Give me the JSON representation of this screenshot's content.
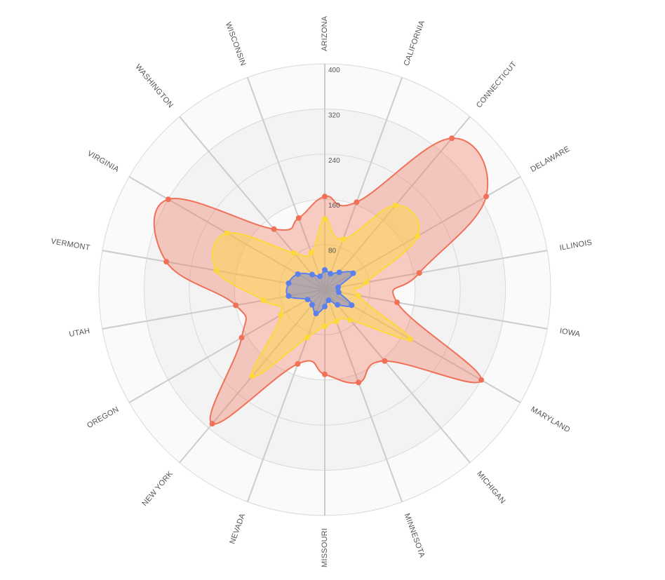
{
  "chart_data": {
    "type": "radar",
    "categories": [
      "ARIZONA",
      "CALIFORNIA",
      "CONNECTICUT",
      "DELAWARE",
      "ILLINOIS",
      "IOWA",
      "MARYLAND",
      "MICHIGAN",
      "MINNESOTA",
      "MISSOURI",
      "NEVADA",
      "NEW YORK",
      "OREGON",
      "UTAH",
      "VERMONT",
      "VIRGINIA",
      "WASHINGTON",
      "WISCONSIN"
    ],
    "radial_ticks": [
      "80",
      "160",
      "240",
      "320",
      "400"
    ],
    "rlim": [
      0,
      400
    ],
    "grid": true,
    "series": [
      {
        "color": "#f07158",
        "fill": "rgba(240,113,88,0.35)",
        "values": [
          165,
          165,
          350,
          330,
          170,
          130,
          320,
          165,
          175,
          150,
          140,
          310,
          170,
          160,
          285,
          320,
          140,
          135
        ]
      },
      {
        "color": "#fdd83a",
        "fill": "rgba(253,216,58,0.45)",
        "values": [
          125,
          95,
          195,
          190,
          75,
          60,
          175,
          70,
          60,
          65,
          90,
          200,
          90,
          110,
          195,
          200,
          85,
          70
        ]
      },
      {
        "color": "#5a80f0",
        "fill": "rgba(95,120,220,0.45)",
        "values": [
          35,
          30,
          40,
          58,
          24,
          25,
          55,
          35,
          20,
          30,
          45,
          35,
          35,
          65,
          65,
          55,
          35,
          25
        ]
      }
    ]
  }
}
